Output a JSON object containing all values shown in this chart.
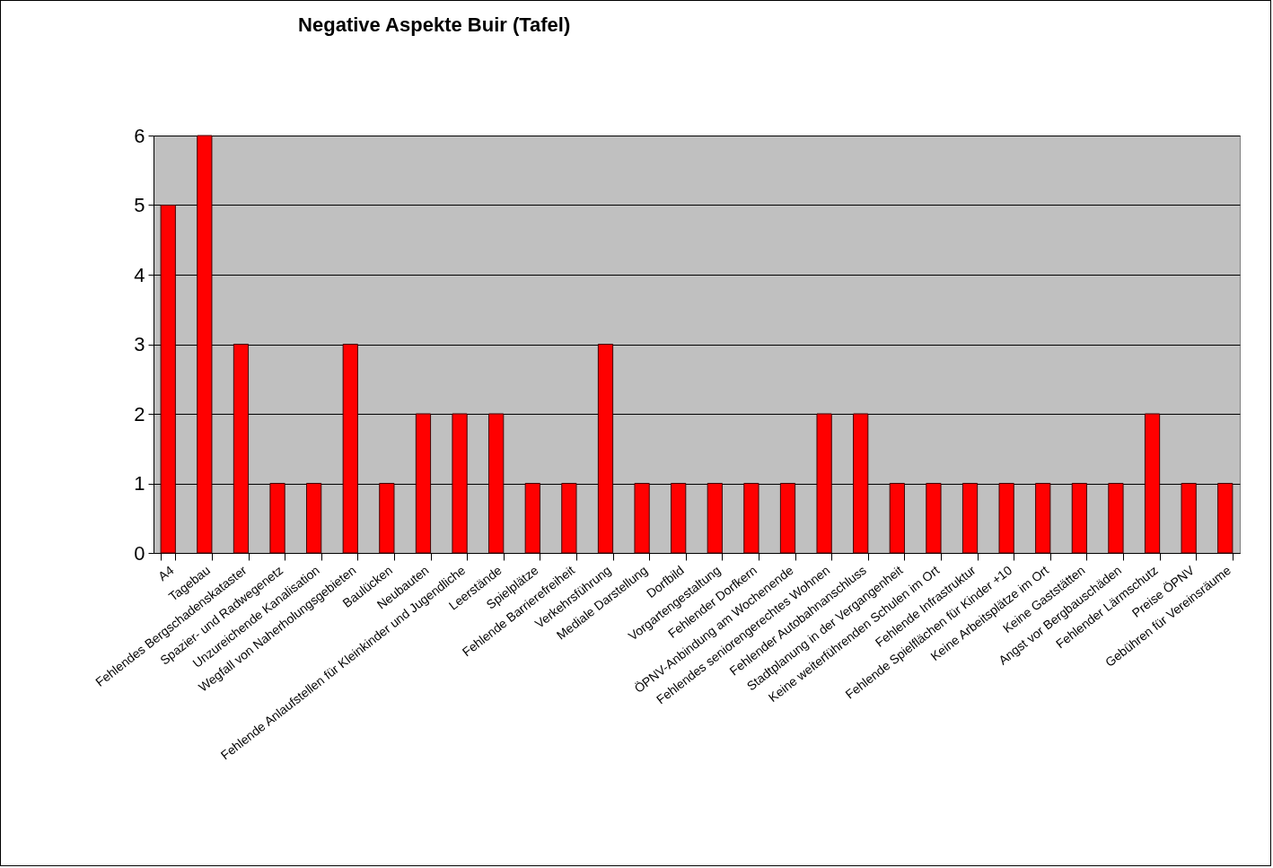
{
  "chart_data": {
    "type": "bar",
    "title": "Negative Aspekte Buir (Tafel)",
    "categories": [
      "A4",
      "Tagebau",
      "Fehlendes Bergschadenskataster",
      "Spazier- und Radwegenetz",
      "Unzureichende Kanalisation",
      "Wegfall von Naherholungsgebieten",
      "Baulücken",
      "Neubauten",
      "Fehlende Anlaufstellen für Kleinkinder und Jugendliche",
      "Leerstände",
      "Spielplätze",
      "Fehlende Barrierefreiheit",
      "Verkehrsführung",
      "Mediale Darstellung",
      "Dorfbild",
      "Vorgartengestaltung",
      "Fehlender Dorfkern",
      "ÖPNV-Anbindung am Wochenende",
      "Fehlendes seniorengerechtes Wohnen",
      "Fehlender Autobahnanschluss",
      "Stadtplanung in der Vergangenheit",
      "Keine weiterführenden Schulen im Ort",
      "Fehlende Infrastruktur",
      "Fehlende Spielflächen für Kinder +10",
      "Keine Arbeitsplätze im Ort",
      "Keine Gaststätten",
      "Angst vor Bergbauschäden",
      "Fehlender Lärmschutz",
      "Preise ÖPNV",
      "Gebühren für Vereinsräume"
    ],
    "values": [
      5,
      6,
      3,
      1,
      1,
      3,
      1,
      2,
      2,
      2,
      1,
      1,
      3,
      1,
      1,
      1,
      1,
      1,
      2,
      2,
      1,
      1,
      1,
      1,
      1,
      1,
      1,
      2,
      1,
      1
    ],
    "color": "#ff0000",
    "ylim": [
      0,
      6
    ],
    "yticks": [
      0,
      1,
      2,
      3,
      4,
      5,
      6
    ],
    "grid": true
  }
}
